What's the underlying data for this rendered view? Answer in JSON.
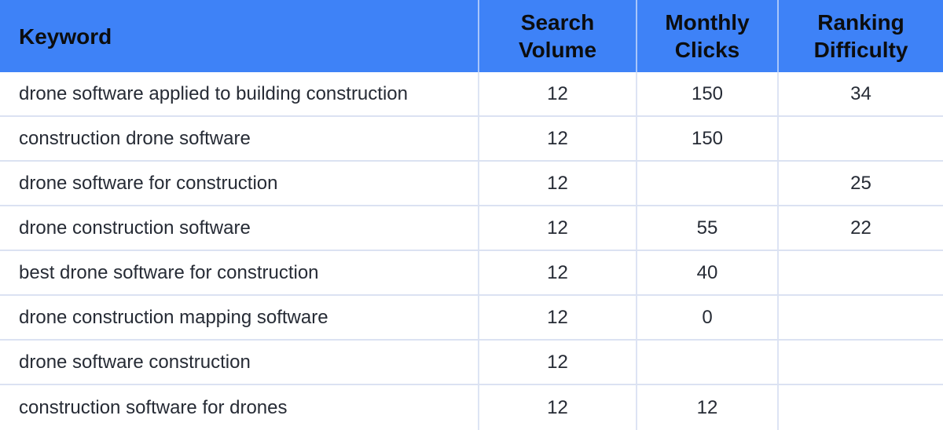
{
  "table": {
    "columns": [
      "Keyword",
      "Search Volume",
      "Monthly Clicks",
      "Ranking Difficulty"
    ],
    "rows": [
      {
        "keyword": "drone software applied to building construction",
        "search_volume": "12",
        "monthly_clicks": "150",
        "ranking_difficulty": "34"
      },
      {
        "keyword": "construction drone software",
        "search_volume": "12",
        "monthly_clicks": "150",
        "ranking_difficulty": ""
      },
      {
        "keyword": "drone software for construction",
        "search_volume": "12",
        "monthly_clicks": "",
        "ranking_difficulty": "25"
      },
      {
        "keyword": "drone construction software",
        "search_volume": "12",
        "monthly_clicks": "55",
        "ranking_difficulty": "22"
      },
      {
        "keyword": "best drone software for construction",
        "search_volume": "12",
        "monthly_clicks": "40",
        "ranking_difficulty": ""
      },
      {
        "keyword": "drone construction mapping software",
        "search_volume": "12",
        "monthly_clicks": "0",
        "ranking_difficulty": ""
      },
      {
        "keyword": "drone software construction",
        "search_volume": "12",
        "monthly_clicks": "",
        "ranking_difficulty": ""
      },
      {
        "keyword": "construction software for drones",
        "search_volume": "12",
        "monthly_clicks": "12",
        "ranking_difficulty": ""
      }
    ],
    "colors": {
      "header_bg": "#3e82f7",
      "header_text": "#0c0d0e",
      "body_text": "#262b35",
      "row_divider": "#dbe2f2",
      "column_divider": "#dde4f4",
      "header_column_divider": "rgba(255,255,255,0.55)"
    }
  }
}
